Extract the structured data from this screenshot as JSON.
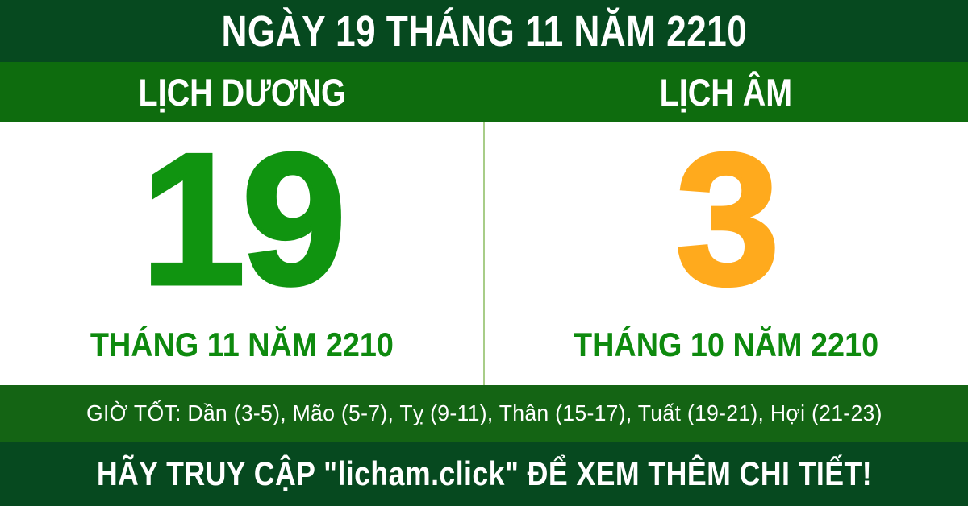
{
  "top_bar": {
    "title": "NGÀY 19 THÁNG 11 NĂM 2210"
  },
  "labels": {
    "solar": "LỊCH DƯƠNG",
    "lunar": "LỊCH ÂM"
  },
  "solar": {
    "day": "19",
    "month_year": "THÁNG 11 NĂM 2210"
  },
  "lunar": {
    "day": "3",
    "month_year": "THÁNG 10 NĂM 2210"
  },
  "good_hours": {
    "text": "GIỜ TỐT: Dần (3-5), Mão (5-7), Tỵ (9-11), Thân (15-17), Tuất (19-21), Hợi (21-23)"
  },
  "footer": {
    "cta": "HÃY TRUY CẬP \"licham.click\" ĐỂ XEM THÊM CHI TIẾT!"
  },
  "colors": {
    "dark_green": "#06491f",
    "green": "#0e6c0e",
    "good_hours_green": "#146414",
    "day_green": "#109410",
    "label_green": "#0e8a0e",
    "orange": "#ffaa1d",
    "divider_green": "#a8cd88",
    "white": "#ffffff"
  }
}
